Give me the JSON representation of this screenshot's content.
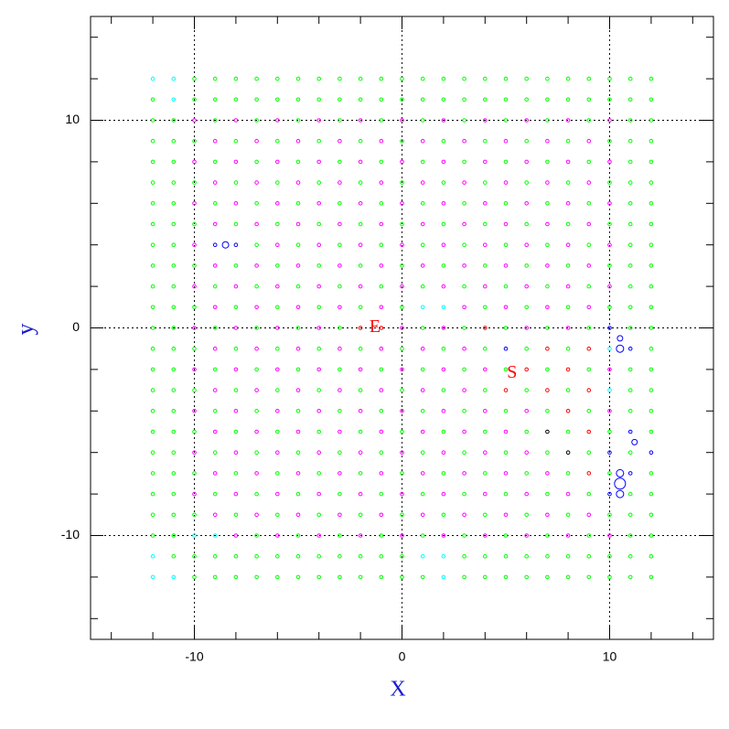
{
  "chart_data": {
    "type": "grid",
    "x_label": "X",
    "y_label": "y",
    "xlim": [
      -15,
      15
    ],
    "ylim": [
      -15,
      15
    ],
    "xticks": [
      -10,
      0,
      10
    ],
    "yticks": [
      -10,
      0,
      10
    ],
    "xminorticks": [
      -14,
      -12,
      -10,
      -8,
      -6,
      -4,
      -2,
      0,
      2,
      4,
      6,
      8,
      10,
      12,
      14
    ],
    "yminorticks": [
      -14,
      -12,
      -10,
      -8,
      -6,
      -4,
      -2,
      0,
      2,
      4,
      6,
      8,
      10,
      12,
      14
    ],
    "grid": true,
    "x": [
      -12,
      -11,
      -10,
      -9,
      -8,
      -7,
      -6,
      -5,
      -4,
      -3,
      -2,
      -1,
      0,
      1,
      2,
      3,
      4,
      5,
      6,
      7,
      8,
      9,
      10,
      11,
      12
    ],
    "y": [
      12,
      11,
      10,
      9,
      8,
      7,
      6,
      5,
      4,
      3,
      2,
      1,
      0,
      -1,
      -2,
      -3,
      -4,
      -5,
      -6,
      -7,
      -8,
      -9,
      -10,
      -11,
      -12
    ],
    "colors": [
      [
        "#0ff",
        "#0ff",
        "#0f0",
        "#0f0",
        "#0f0",
        "#0f0",
        "#0f0",
        "#0f0",
        "#0f0",
        "#0f0",
        "#0f0",
        "#0f0",
        "#0f0",
        "#0f0",
        "#0f0",
        "#0f0",
        "#0f0",
        "#0f0",
        "#0f0",
        "#0f0",
        "#0f0",
        "#0f0",
        "#0f0",
        "#0f0",
        "#0f0"
      ],
      [
        "#0f0",
        "#0ff",
        "#0f0",
        "#0f0",
        "#0f0",
        "#0f0",
        "#0f0",
        "#0f0",
        "#0f0",
        "#0f0",
        "#0f0",
        "#0f0",
        "#0f0",
        "#0f0",
        "#0f0",
        "#0f0",
        "#0f0",
        "#0f0",
        "#0f0",
        "#0f0",
        "#0f0",
        "#0f0",
        "#0f0",
        "#0f0",
        "#0f0"
      ],
      [
        "#0f0",
        "#0f0",
        "#f0f",
        "#0f0",
        "#f0f",
        "#0f0",
        "#f0f",
        "#0f0",
        "#f0f",
        "#0f0",
        "#f0f",
        "#0f0",
        "#f0f",
        "#0f0",
        "#f0f",
        "#0f0",
        "#f0f",
        "#0f0",
        "#f0f",
        "#0f0",
        "#f0f",
        "#0f0",
        "#f0f",
        "#0f0",
        "#0f0"
      ],
      [
        "#0f0",
        "#0f0",
        "#0f0",
        "#f0f",
        "#0f0",
        "#f0f",
        "#0f0",
        "#f0f",
        "#0f0",
        "#f0f",
        "#0f0",
        "#f0f",
        "#0f0",
        "#f0f",
        "#0f0",
        "#f0f",
        "#0f0",
        "#f0f",
        "#0f0",
        "#f0f",
        "#0f0",
        "#f0f",
        "#0f0",
        "#0f0",
        "#0f0"
      ],
      [
        "#0f0",
        "#0f0",
        "#f0f",
        "#0f0",
        "#f0f",
        "#0f0",
        "#f0f",
        "#0f0",
        "#f0f",
        "#0f0",
        "#f0f",
        "#0f0",
        "#f0f",
        "#0f0",
        "#f0f",
        "#0f0",
        "#f0f",
        "#0f0",
        "#f0f",
        "#0f0",
        "#f0f",
        "#0f0",
        "#f0f",
        "#0f0",
        "#0f0"
      ],
      [
        "#0f0",
        "#0f0",
        "#0f0",
        "#f0f",
        "#0f0",
        "#f0f",
        "#0f0",
        "#f0f",
        "#0f0",
        "#f0f",
        "#0f0",
        "#f0f",
        "#0f0",
        "#f0f",
        "#0f0",
        "#f0f",
        "#0f0",
        "#f0f",
        "#0f0",
        "#f0f",
        "#0f0",
        "#f0f",
        "#0f0",
        "#0f0",
        "#0f0"
      ],
      [
        "#0f0",
        "#0f0",
        "#f0f",
        "#0f0",
        "#f0f",
        "#0f0",
        "#f0f",
        "#0f0",
        "#f0f",
        "#0f0",
        "#f0f",
        "#0f0",
        "#f0f",
        "#0f0",
        "#f0f",
        "#0f0",
        "#f0f",
        "#0f0",
        "#f0f",
        "#0f0",
        "#f0f",
        "#0f0",
        "#f0f",
        "#0f0",
        "#0f0"
      ],
      [
        "#0f0",
        "#0f0",
        "#0f0",
        "#f0f",
        "#0f0",
        "#f0f",
        "#0f0",
        "#f0f",
        "#0f0",
        "#f0f",
        "#0f0",
        "#f0f",
        "#0f0",
        "#f0f",
        "#0f0",
        "#f0f",
        "#0f0",
        "#f0f",
        "#0f0",
        "#f0f",
        "#0f0",
        "#f0f",
        "#0f0",
        "#0f0",
        "#0f0"
      ],
      [
        "#0f0",
        "#0f0",
        "#f0f",
        "#00f",
        "#00f",
        "#0f0",
        "#f0f",
        "#0f0",
        "#f0f",
        "#0f0",
        "#f0f",
        "#0f0",
        "#f0f",
        "#0f0",
        "#f0f",
        "#0f0",
        "#f0f",
        "#0f0",
        "#f0f",
        "#0f0",
        "#f0f",
        "#0f0",
        "#f0f",
        "#0f0",
        "#0f0"
      ],
      [
        "#0f0",
        "#0f0",
        "#0f0",
        "#f0f",
        "#0f0",
        "#f0f",
        "#0f0",
        "#f0f",
        "#0f0",
        "#f0f",
        "#0f0",
        "#f0f",
        "#0f0",
        "#f0f",
        "#0f0",
        "#f0f",
        "#0f0",
        "#f0f",
        "#0f0",
        "#f0f",
        "#0f0",
        "#f0f",
        "#0f0",
        "#0f0",
        "#0f0"
      ],
      [
        "#0f0",
        "#0f0",
        "#f0f",
        "#0f0",
        "#f0f",
        "#0f0",
        "#f0f",
        "#0f0",
        "#f0f",
        "#0f0",
        "#f0f",
        "#0f0",
        "#f0f",
        "#0f0",
        "#f0f",
        "#0f0",
        "#f0f",
        "#0f0",
        "#f0f",
        "#0f0",
        "#f0f",
        "#0f0",
        "#f0f",
        "#0f0",
        "#0f0"
      ],
      [
        "#0f0",
        "#0f0",
        "#0f0",
        "#f0f",
        "#0f0",
        "#f0f",
        "#0f0",
        "#f0f",
        "#0f0",
        "#f0f",
        "#0f0",
        "#f0f",
        "#0f0",
        "#0ff",
        "#0ff",
        "#f0f",
        "#0f0",
        "#f0f",
        "#0f0",
        "#f0f",
        "#0f0",
        "#f0f",
        "#0f0",
        "#0f0",
        "#0f0"
      ],
      [
        "#0f0",
        "#0f0",
        "#f0f",
        "#0f0",
        "#f0f",
        "#0f0",
        "#f0f",
        "#0f0",
        "#f0f",
        "#0f0",
        "#f00",
        "#f00",
        "#f0f",
        "#0f0",
        "#f0f",
        "#0f0",
        "#f00",
        "#0f0",
        "#f0f",
        "#0f0",
        "#f0f",
        "#0f0",
        "#00f",
        "#0f0",
        "#0f0"
      ],
      [
        "#0f0",
        "#0f0",
        "#0f0",
        "#f0f",
        "#0f0",
        "#f0f",
        "#0f0",
        "#f0f",
        "#0f0",
        "#f0f",
        "#0f0",
        "#f0f",
        "#0f0",
        "#f0f",
        "#0f0",
        "#f0f",
        "#0f0",
        "#00f",
        "#0f0",
        "#f00",
        "#0f0",
        "#f00",
        "#0ff",
        "#00f",
        "#0f0"
      ],
      [
        "#0f0",
        "#0f0",
        "#f0f",
        "#0f0",
        "#f0f",
        "#0f0",
        "#f0f",
        "#0f0",
        "#f0f",
        "#0f0",
        "#f0f",
        "#0f0",
        "#f0f",
        "#0f0",
        "#f0f",
        "#0f0",
        "#f0f",
        "#0f0",
        "#f00",
        "#0f0",
        "#f00",
        "#0f0",
        "#f0f",
        "#0f0",
        "#0f0"
      ],
      [
        "#0f0",
        "#0f0",
        "#0f0",
        "#f0f",
        "#0f0",
        "#f0f",
        "#0f0",
        "#f0f",
        "#0f0",
        "#f0f",
        "#0f0",
        "#f0f",
        "#0f0",
        "#f0f",
        "#0f0",
        "#f0f",
        "#0f0",
        "#f00",
        "#0f0",
        "#f00",
        "#0f0",
        "#f00",
        "#0ff",
        "#0f0",
        "#0f0"
      ],
      [
        "#0f0",
        "#0f0",
        "#f0f",
        "#0f0",
        "#f0f",
        "#0f0",
        "#f0f",
        "#0f0",
        "#f0f",
        "#0f0",
        "#f0f",
        "#0f0",
        "#f0f",
        "#0f0",
        "#f0f",
        "#0f0",
        "#f0f",
        "#0f0",
        "#f0f",
        "#0f0",
        "#f00",
        "#0f0",
        "#f0f",
        "#0f0",
        "#0f0"
      ],
      [
        "#0f0",
        "#0f0",
        "#0f0",
        "#f0f",
        "#0f0",
        "#f0f",
        "#0f0",
        "#f0f",
        "#0f0",
        "#f0f",
        "#0f0",
        "#f0f",
        "#0f0",
        "#f0f",
        "#0f0",
        "#f0f",
        "#0f0",
        "#f0f",
        "#0f0",
        "#000",
        "#0f0",
        "#f00",
        "#0f0",
        "#00f",
        "#0f0"
      ],
      [
        "#0f0",
        "#0f0",
        "#f0f",
        "#0f0",
        "#f0f",
        "#0f0",
        "#f0f",
        "#0f0",
        "#f0f",
        "#0f0",
        "#f0f",
        "#0f0",
        "#f0f",
        "#0f0",
        "#f0f",
        "#0f0",
        "#f0f",
        "#0f0",
        "#f0f",
        "#0f0",
        "#000",
        "#0f0",
        "#00f",
        "#0f0",
        "#00f"
      ],
      [
        "#0f0",
        "#0f0",
        "#0f0",
        "#f0f",
        "#0f0",
        "#f0f",
        "#0f0",
        "#f0f",
        "#0f0",
        "#f0f",
        "#0f0",
        "#f0f",
        "#0f0",
        "#f0f",
        "#0f0",
        "#f0f",
        "#0f0",
        "#f0f",
        "#0f0",
        "#f0f",
        "#0f0",
        "#f00",
        "#0f0",
        "#00f",
        "#0f0"
      ],
      [
        "#0f0",
        "#0f0",
        "#f0f",
        "#0f0",
        "#f0f",
        "#0f0",
        "#f0f",
        "#0f0",
        "#f0f",
        "#0f0",
        "#f0f",
        "#0f0",
        "#f0f",
        "#0f0",
        "#f0f",
        "#0f0",
        "#f0f",
        "#0f0",
        "#f0f",
        "#0f0",
        "#f0f",
        "#0f0",
        "#00f",
        "#0f0",
        "#0f0"
      ],
      [
        "#0f0",
        "#0f0",
        "#0f0",
        "#f0f",
        "#0f0",
        "#f0f",
        "#0f0",
        "#f0f",
        "#0f0",
        "#f0f",
        "#0f0",
        "#f0f",
        "#0f0",
        "#f0f",
        "#0f0",
        "#f0f",
        "#0f0",
        "#f0f",
        "#0f0",
        "#f0f",
        "#0f0",
        "#f0f",
        "#0f0",
        "#0f0",
        "#0f0"
      ],
      [
        "#0f0",
        "#0f0",
        "#0ff",
        "#0ff",
        "#f0f",
        "#0f0",
        "#f0f",
        "#0f0",
        "#f0f",
        "#0f0",
        "#f0f",
        "#0f0",
        "#f0f",
        "#0f0",
        "#f0f",
        "#0f0",
        "#f0f",
        "#0f0",
        "#f0f",
        "#0f0",
        "#f0f",
        "#0f0",
        "#f0f",
        "#0f0",
        "#0f0"
      ],
      [
        "#0ff",
        "#0f0",
        "#0f0",
        "#0f0",
        "#0f0",
        "#0f0",
        "#0f0",
        "#0f0",
        "#0f0",
        "#0f0",
        "#0f0",
        "#0f0",
        "#0f0",
        "#0ff",
        "#0ff",
        "#0f0",
        "#0f0",
        "#0f0",
        "#0f0",
        "#0f0",
        "#0f0",
        "#0f0",
        "#0f0",
        "#0f0",
        "#0f0"
      ],
      [
        "#0ff",
        "#0ff",
        "#0f0",
        "#0f0",
        "#0f0",
        "#0f0",
        "#0f0",
        "#0f0",
        "#0f0",
        "#0f0",
        "#0f0",
        "#0f0",
        "#0f0",
        "#0f0",
        "#0ff",
        "#0f0",
        "#0f0",
        "#0f0",
        "#0f0",
        "#0f0",
        "#0f0",
        "#0f0",
        "#0f0",
        "#0f0",
        "#0f0"
      ]
    ],
    "highlights": {
      "color": "#00f",
      "x": [
        10.5,
        10.5,
        10.5,
        10.5,
        10.5,
        -8.5,
        11.2
      ],
      "y": [
        -0.5,
        -1,
        -7,
        -7.5,
        -8,
        4,
        -5.5
      ],
      "sizes": [
        3,
        4,
        4,
        6,
        4,
        3.5,
        3
      ]
    },
    "annotations": [
      {
        "text": "E",
        "x": -1.3,
        "y": 0,
        "color": "#f00"
      },
      {
        "text": "S",
        "x": 5.3,
        "y": -2.2,
        "color": "#f00"
      }
    ]
  }
}
